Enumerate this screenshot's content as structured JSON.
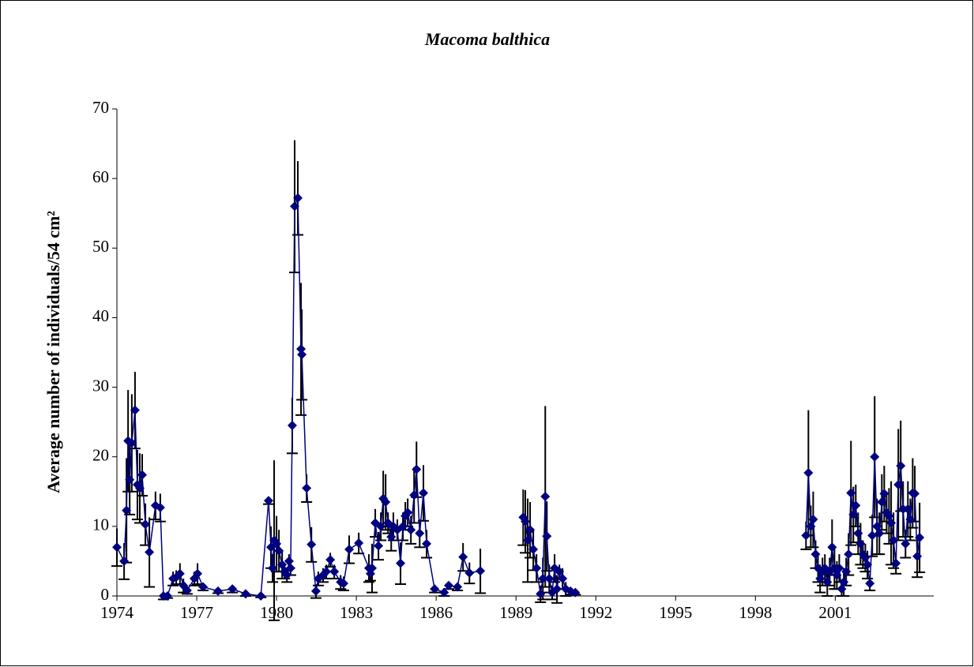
{
  "chart_data": {
    "type": "line",
    "title": "Macoma balthica",
    "y_label": "Average number of individuals/54 cm²",
    "color": "#000080",
    "error_color": "#000000",
    "xlim": [
      1974,
      2004.7
    ],
    "xticks": [
      1974,
      1977,
      1980,
      1983,
      1986,
      1989,
      1992,
      1995,
      1998,
      2001
    ],
    "ylim": [
      0,
      70
    ],
    "yticks": [
      0,
      10,
      20,
      30,
      40,
      50,
      60,
      70
    ],
    "grid": false,
    "x": [
      1974.0,
      1974.27,
      1974.36,
      1974.42,
      1974.48,
      1974.56,
      1974.68,
      1974.77,
      1974.86,
      1974.95,
      1975.07,
      1975.22,
      1975.45,
      1975.63,
      1975.75,
      1975.9,
      1976.11,
      1976.23,
      1976.37,
      1976.5,
      1976.64,
      1976.91,
      1977.03,
      1977.24,
      1977.8,
      1978.34,
      1978.84,
      1979.41,
      1979.7,
      1979.79,
      1979.85,
      1979.91,
      1980.0,
      1980.09,
      1980.21,
      1980.3,
      1980.39,
      1980.47,
      1980.53,
      1980.59,
      1980.68,
      1980.8,
      1980.92,
      1980.95,
      1981.13,
      1981.31,
      1981.48,
      1981.57,
      1981.75,
      1981.87,
      1982.02,
      1982.17,
      1982.41,
      1982.52,
      1982.73,
      1983.09,
      1983.47,
      1983.53,
      1983.59,
      1983.71,
      1983.83,
      1983.92,
      1984.01,
      1984.1,
      1984.19,
      1984.31,
      1984.39,
      1984.54,
      1984.66,
      1984.75,
      1984.84,
      1984.93,
      1985.05,
      1985.17,
      1985.26,
      1985.38,
      1985.52,
      1985.64,
      1985.94,
      1986.3,
      1986.47,
      1986.8,
      1987.01,
      1987.25,
      1987.66,
      null,
      1989.27,
      1989.35,
      1989.44,
      1989.53,
      1989.65,
      1989.77,
      1989.92,
      1990.01,
      1990.1,
      1990.16,
      1990.25,
      1990.36,
      1990.45,
      1990.54,
      1990.63,
      1990.75,
      1990.87,
      1991.05,
      1991.23,
      null,
      1999.9,
      1999.99,
      2000.08,
      2000.17,
      2000.26,
      2000.35,
      2000.43,
      2000.52,
      2000.61,
      2000.7,
      2000.79,
      2000.88,
      2000.97,
      2001.06,
      2001.15,
      2001.24,
      2001.32,
      2001.41,
      2001.5,
      2001.59,
      2001.68,
      2001.77,
      2001.86,
      2001.95,
      2002.04,
      2002.13,
      2002.21,
      2002.3,
      2002.39,
      2002.48,
      2002.57,
      2002.66,
      2002.75,
      2002.84,
      2002.93,
      2003.02,
      2003.1,
      2003.19,
      2003.28,
      2003.37,
      2003.46,
      2003.55,
      2003.64,
      2003.73,
      2003.82,
      2003.91,
      2003.99,
      2004.08,
      2004.17
    ],
    "values": [
      7,
      5,
      12.3,
      22.3,
      16.7,
      22,
      26.7,
      16,
      15.5,
      17.4,
      10.3,
      6.3,
      13,
      12.7,
      0,
      0,
      2.5,
      2.7,
      3.2,
      1.5,
      0.8,
      2.5,
      3.2,
      1.3,
      0.7,
      1,
      0.3,
      0,
      13.7,
      7,
      4,
      8,
      7.5,
      6.5,
      4.5,
      3.5,
      3,
      5,
      4,
      24.5,
      56,
      57.2,
      35.5,
      34.7,
      15.5,
      7.4,
      0.7,
      2.5,
      3,
      3.5,
      5.2,
      3.5,
      2,
      1.8,
      6.7,
      7.6,
      4,
      3.2,
      4,
      10.5,
      7.2,
      10,
      14,
      13.5,
      10.5,
      8.5,
      10,
      9.5,
      4.7,
      10,
      11.5,
      12,
      9.5,
      14.5,
      18.2,
      9,
      14.8,
      7.5,
      1,
      0.5,
      1.5,
      1.3,
      5.6,
      3.3,
      3.6,
      null,
      11.3,
      10.7,
      8,
      9.5,
      6.7,
      4,
      0.3,
      2.5,
      14.3,
      8.6,
      2.5,
      0.5,
      4,
      1,
      3.5,
      2.5,
      1,
      0.7,
      0.5,
      null,
      8.7,
      17.7,
      10,
      11,
      6,
      4,
      2.5,
      3.5,
      4,
      2,
      3.5,
      7,
      4,
      3,
      4,
      1,
      2,
      3.5,
      6,
      14.8,
      11.7,
      13,
      9,
      7.5,
      6,
      5.5,
      4.5,
      1.8,
      8.7,
      20,
      10,
      9,
      13.5,
      14.7,
      12,
      11.5,
      10.5,
      8,
      4.7,
      16,
      18.7,
      12.5,
      7.5,
      12.5,
      11,
      14.8,
      14.7,
      5.7,
      8.4
    ],
    "errors": [
      2.7,
      2.6,
      7.5,
      7.3,
      5,
      7,
      5.5,
      5,
      5,
      3,
      3,
      5,
      2,
      2,
      0.5,
      0.3,
      1,
      1,
      1.5,
      1,
      0.5,
      1,
      1.5,
      0.5,
      0.3,
      0.5,
      0.3,
      0.2,
      0.5,
      3,
      2,
      11.5,
      4,
      3,
      2,
      1,
      1,
      1,
      1,
      4,
      9.5,
      5.3,
      9.5,
      6.5,
      2,
      2.5,
      1,
      1,
      1,
      1,
      1,
      1,
      1,
      1,
      2,
      1.5,
      2,
      1,
      3.5,
      2,
      2,
      2,
      4,
      4,
      1.5,
      2,
      2,
      1.5,
      3,
      2,
      2,
      2,
      2,
      4,
      4,
      2,
      4,
      2,
      0.5,
      0.5,
      0.5,
      0.5,
      2,
      1.5,
      3.2,
      null,
      4,
      4.5,
      6,
      4,
      3,
      2,
      1.2,
      3,
      13,
      5,
      2,
      1,
      2,
      2,
      1,
      1.5,
      1,
      0.5,
      0.3,
      null,
      2,
      9,
      3,
      4,
      2,
      2,
      2,
      2,
      2,
      2,
      2,
      4,
      3,
      2,
      2,
      1,
      2,
      2,
      3,
      7.5,
      4,
      3,
      3,
      3,
      2,
      2,
      2,
      1,
      3,
      8.7,
      4,
      3,
      4,
      4,
      3,
      4,
      6,
      4,
      1.5,
      8,
      6.5,
      4,
      2,
      4,
      3,
      5,
      4,
      3,
      5
    ]
  }
}
